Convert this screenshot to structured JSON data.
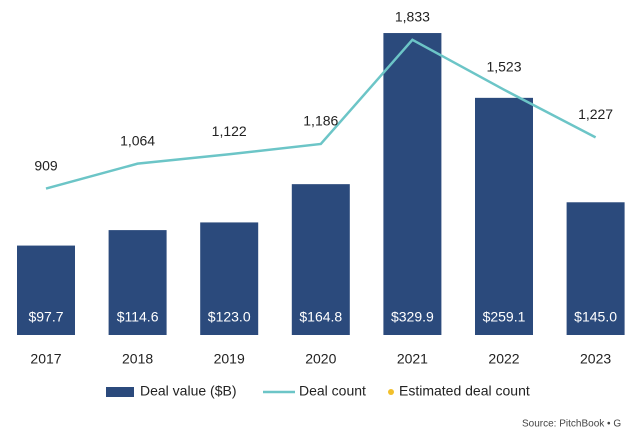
{
  "chart_data": {
    "type": "bar_line",
    "categories": [
      "2017",
      "2018",
      "2019",
      "2020",
      "2021",
      "2022",
      "2023"
    ],
    "series": [
      {
        "name": "Deal value ($B)",
        "color": "#2b4a7c",
        "values": [
          97.7,
          114.6,
          123.0,
          164.8,
          329.9,
          259.1,
          145.0
        ],
        "value_labels": [
          "$97.7",
          "$114.6",
          "$123.0",
          "$164.8",
          "$329.9",
          "$259.1",
          "$145.0"
        ]
      },
      {
        "name": "Deal count",
        "color": "#6cc5c7",
        "axis": "y2",
        "values": [
          909,
          1064,
          1122,
          1186,
          1833,
          1523,
          1227
        ],
        "value_labels": [
          "909",
          "1,064",
          "1,122",
          "1,186",
          "1,833",
          "1,523",
          "1,227"
        ]
      },
      {
        "name": "Estimated deal count",
        "color": "#f2c02c",
        "axis": "y2",
        "values": [
          null,
          null,
          null,
          null,
          null,
          null,
          null
        ]
      }
    ],
    "ylim": [
      0,
      366
    ],
    "y2lim": [
      0,
      2080
    ],
    "source": "Source: PitchBook • G"
  }
}
